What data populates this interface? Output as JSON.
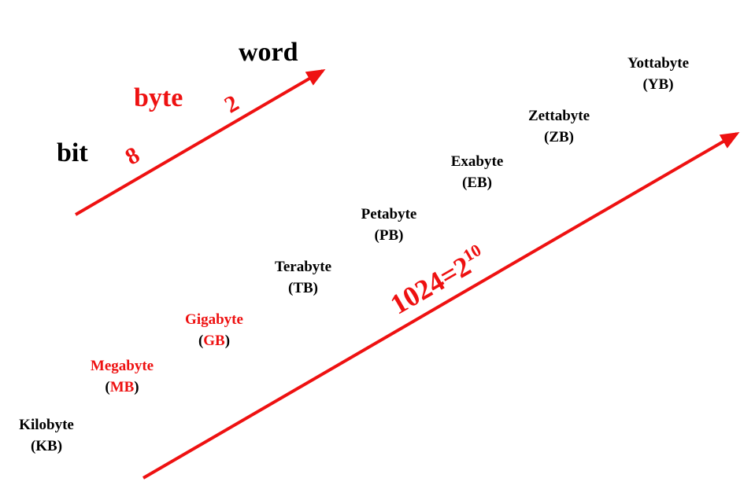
{
  "colors": {
    "accent": "#ee1111",
    "text": "#000000"
  },
  "top_chain": {
    "bit": "bit",
    "byte": "byte",
    "word": "word",
    "bits_per_byte": "8",
    "bytes_per_word": "2"
  },
  "units": [
    {
      "name": "Kilobyte",
      "abbr_open": "(",
      "abbr": "KB",
      "abbr_close": ")",
      "highlight": false
    },
    {
      "name": "Megabyte",
      "abbr_open": "(",
      "abbr": "MB",
      "abbr_close": ")",
      "highlight": true
    },
    {
      "name": "Gigabyte",
      "abbr_open": "(",
      "abbr": "GB",
      "abbr_close": ")",
      "highlight": true
    },
    {
      "name": "Terabyte",
      "abbr_open": "(",
      "abbr": "TB",
      "abbr_close": ")",
      "highlight": false
    },
    {
      "name": "Petabyte",
      "abbr_open": "(",
      "abbr": "PB",
      "abbr_close": ")",
      "highlight": false
    },
    {
      "name": "Exabyte",
      "abbr_open": "(",
      "abbr": "EB",
      "abbr_close": ")",
      "highlight": false
    },
    {
      "name": "Zettabyte",
      "abbr_open": "(",
      "abbr": "ZB",
      "abbr_close": ")",
      "highlight": false
    },
    {
      "name": "Yottabyte",
      "abbr_open": "(",
      "abbr": "YB",
      "abbr_close": ")",
      "highlight": false
    }
  ],
  "conversion": {
    "base": "1024=2",
    "exponent": "10"
  }
}
